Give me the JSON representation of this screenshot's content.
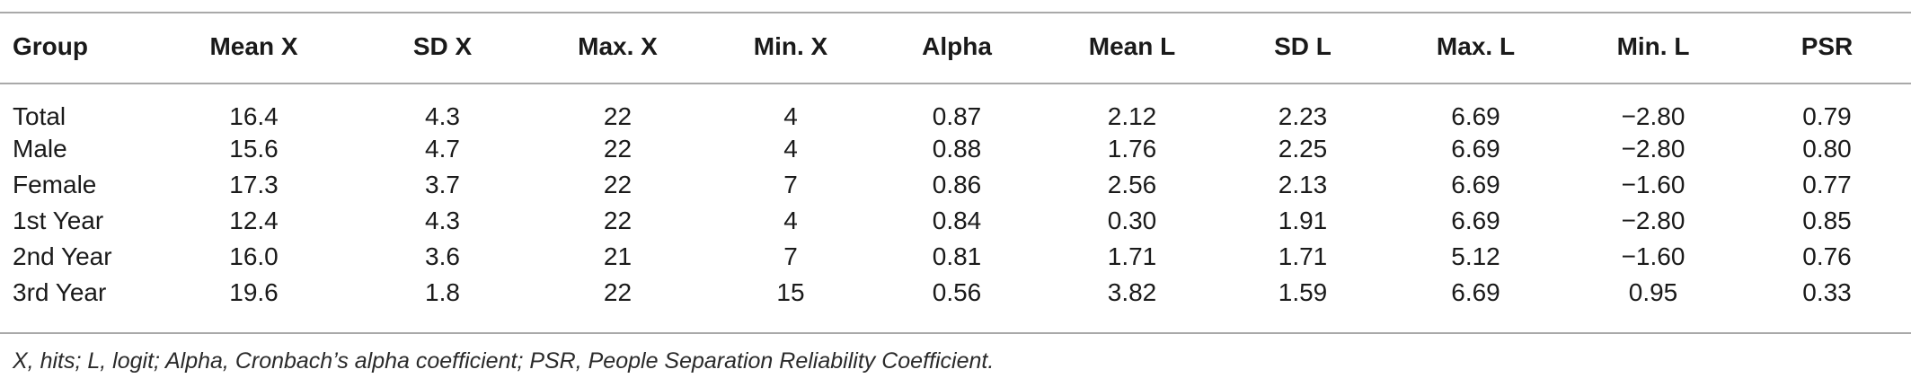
{
  "table": {
    "headers": [
      "Group",
      "Mean X",
      "SD X",
      "Max. X",
      "Min. X",
      "Alpha",
      "Mean L",
      "SD L",
      "Max. L",
      "Min. L",
      "PSR"
    ],
    "rows": [
      [
        "Total",
        "16.4",
        "4.3",
        "22",
        "4",
        "0.87",
        "2.12",
        "2.23",
        "6.69",
        "−2.80",
        "0.79"
      ],
      [
        "Male",
        "15.6",
        "4.7",
        "22",
        "4",
        "0.88",
        "1.76",
        "2.25",
        "6.69",
        "−2.80",
        "0.80"
      ],
      [
        "Female",
        "17.3",
        "3.7",
        "22",
        "7",
        "0.86",
        "2.56",
        "2.13",
        "6.69",
        "−1.60",
        "0.77"
      ],
      [
        "1st Year",
        "12.4",
        "4.3",
        "22",
        "4",
        "0.84",
        "0.30",
        "1.91",
        "6.69",
        "−2.80",
        "0.85"
      ],
      [
        "2nd Year",
        "16.0",
        "3.6",
        "21",
        "7",
        "0.81",
        "1.71",
        "1.71",
        "5.12",
        "−1.60",
        "0.76"
      ],
      [
        "3rd Year",
        "19.6",
        "1.8",
        "22",
        "15",
        "0.56",
        "3.82",
        "1.59",
        "6.69",
        "0.95",
        "0.33"
      ]
    ]
  },
  "footnote": "X, hits; L, logit; Alpha, Cronbach’s alpha coefficient; PSR, People Separation Reliability Coefficient.",
  "colors": {
    "text": "#1a1a1a",
    "rule": "#a9a9a9",
    "background": "#ffffff"
  }
}
